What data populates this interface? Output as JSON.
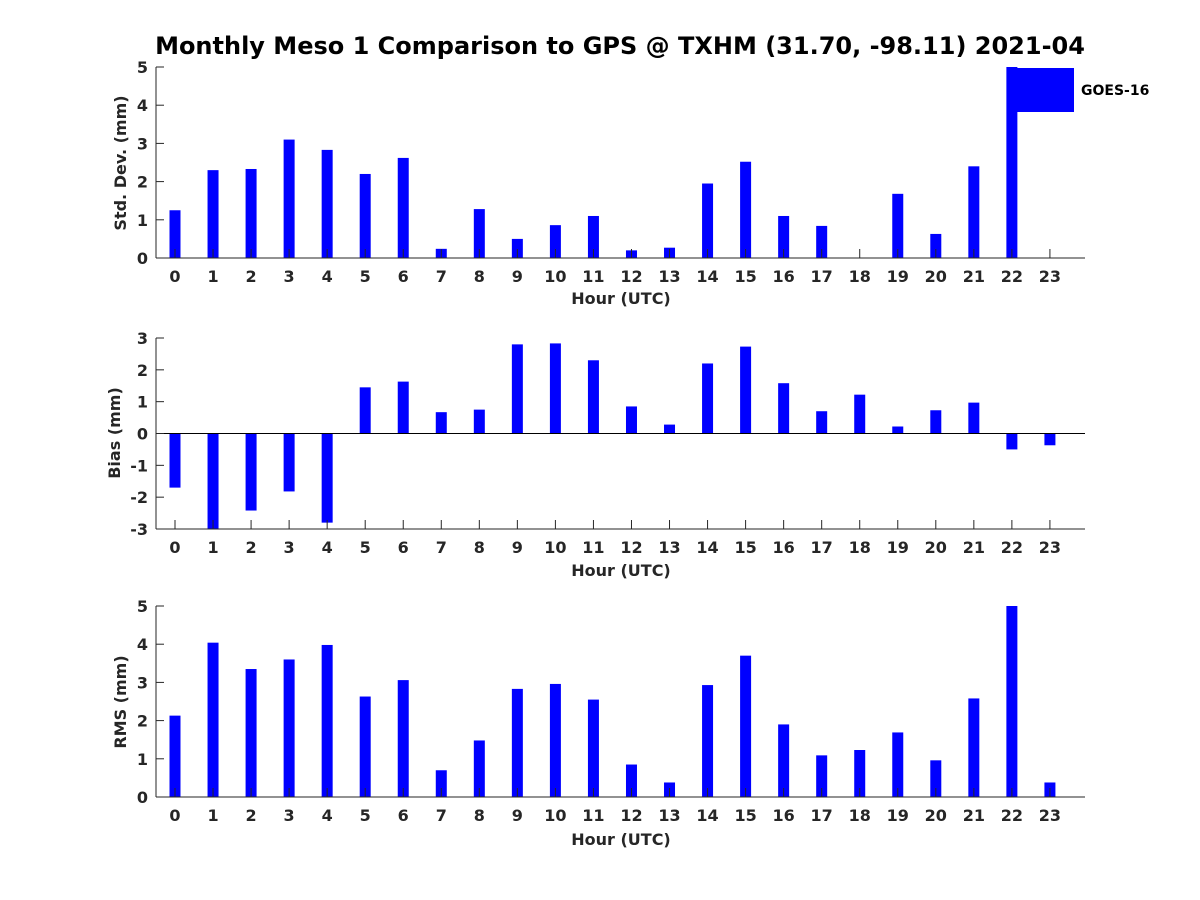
{
  "title": "Monthly Meso 1 Comparison to GPS @ TXHM (31.70, -98.11) 2021-04",
  "legend": {
    "label": "GOES-16",
    "color": "#0000ff"
  },
  "chart_data": [
    {
      "type": "bar",
      "name": "std-dev",
      "categories": [
        "0",
        "1",
        "2",
        "3",
        "4",
        "5",
        "6",
        "7",
        "8",
        "9",
        "10",
        "11",
        "12",
        "13",
        "14",
        "15",
        "16",
        "17",
        "18",
        "19",
        "20",
        "21",
        "22",
        "23"
      ],
      "values": [
        1.25,
        2.3,
        2.33,
        3.1,
        2.83,
        2.2,
        2.62,
        0.24,
        1.28,
        0.5,
        0.86,
        1.1,
        0.2,
        0.27,
        1.95,
        2.52,
        1.1,
        0.84,
        null,
        1.68,
        0.63,
        2.4,
        5.0,
        null
      ],
      "xlabel": "Hour (UTC)",
      "ylabel": "Std. Dev. (mm)",
      "ylim": [
        0,
        5
      ],
      "yticks": [
        0,
        1,
        2,
        3,
        4,
        5
      ],
      "grid": false,
      "legend": "top-right"
    },
    {
      "type": "bar",
      "name": "bias",
      "categories": [
        "0",
        "1",
        "2",
        "3",
        "4",
        "5",
        "6",
        "7",
        "8",
        "9",
        "10",
        "11",
        "12",
        "13",
        "14",
        "15",
        "16",
        "17",
        "18",
        "19",
        "20",
        "21",
        "22",
        "23"
      ],
      "values": [
        -1.7,
        -3.0,
        -2.42,
        -1.82,
        -2.8,
        1.45,
        1.63,
        0.67,
        0.75,
        2.8,
        2.83,
        2.3,
        0.85,
        0.28,
        2.2,
        2.73,
        1.58,
        0.7,
        1.22,
        0.22,
        0.73,
        0.97,
        -0.5,
        -0.37
      ],
      "xlabel": "Hour (UTC)",
      "ylabel": "Bias (mm)",
      "ylim": [
        -3,
        3
      ],
      "yticks": [
        -3,
        -2,
        -1,
        0,
        1,
        2,
        3
      ],
      "grid": false,
      "zero_line": true
    },
    {
      "type": "bar",
      "name": "rms",
      "categories": [
        "0",
        "1",
        "2",
        "3",
        "4",
        "5",
        "6",
        "7",
        "8",
        "9",
        "10",
        "11",
        "12",
        "13",
        "14",
        "15",
        "16",
        "17",
        "18",
        "19",
        "20",
        "21",
        "22",
        "23"
      ],
      "values": [
        2.13,
        4.04,
        3.35,
        3.6,
        3.98,
        2.63,
        3.06,
        0.7,
        1.48,
        2.83,
        2.96,
        2.55,
        0.85,
        0.38,
        2.93,
        3.7,
        1.9,
        1.09,
        1.23,
        1.69,
        0.96,
        2.58,
        5.0,
        0.38
      ],
      "xlabel": "Hour (UTC)",
      "ylabel": "RMS (mm)",
      "ylim": [
        0,
        5
      ],
      "yticks": [
        0,
        1,
        2,
        3,
        4,
        5
      ],
      "grid": false
    }
  ]
}
